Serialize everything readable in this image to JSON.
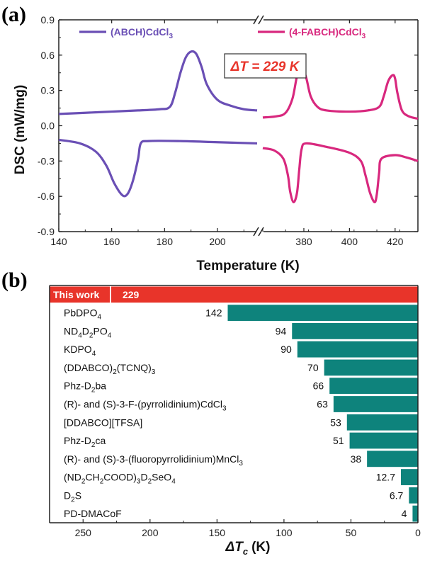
{
  "chart_data": [
    {
      "panel": "(a)",
      "type": "line",
      "ylabel": "DSC (mW/mg)",
      "xlabel": "Temperature (K)",
      "ylim": [
        -0.9,
        0.9
      ],
      "yticks": [
        "0.9",
        "0.6",
        "0.3",
        "0.0",
        "-0.3",
        "-0.6",
        "-0.9"
      ],
      "x_segments": [
        {
          "range": [
            140,
            215
          ],
          "ticks": [
            "140",
            "160",
            "180",
            "200"
          ]
        },
        {
          "range": [
            362,
            430
          ],
          "ticks": [
            "380",
            "400",
            "420"
          ]
        }
      ],
      "annotation": "ΔT = 229 K",
      "series": [
        {
          "name": "(ABCH)CdCl3",
          "name_main": "(ABCH)CdCl",
          "name_sub": "3",
          "color": "#6a4fb5",
          "segment": 0,
          "curves": [
            [
              [
                140,
                0.1
              ],
              [
                150,
                0.11
              ],
              [
                160,
                0.12
              ],
              [
                170,
                0.13
              ],
              [
                178,
                0.14
              ],
              [
                182,
                0.16
              ],
              [
                184,
                0.28
              ],
              [
                186,
                0.45
              ],
              [
                188,
                0.58
              ],
              [
                190,
                0.63
              ],
              [
                192,
                0.61
              ],
              [
                194,
                0.5
              ],
              [
                196,
                0.35
              ],
              [
                200,
                0.22
              ],
              [
                205,
                0.17
              ],
              [
                210,
                0.14
              ],
              [
                215,
                0.13
              ]
            ],
            [
              [
                140,
                -0.12
              ],
              [
                148,
                -0.15
              ],
              [
                154,
                -0.22
              ],
              [
                158,
                -0.34
              ],
              [
                161,
                -0.49
              ],
              [
                164,
                -0.59
              ],
              [
                166,
                -0.58
              ],
              [
                168,
                -0.47
              ],
              [
                170,
                -0.28
              ],
              [
                171,
                -0.15
              ],
              [
                174,
                -0.13
              ],
              [
                185,
                -0.13
              ],
              [
                200,
                -0.14
              ],
              [
                215,
                -0.15
              ]
            ]
          ]
        },
        {
          "name": "(4-FABCH)CdCl3",
          "name_main": "(4-FABCH)CdCl",
          "name_sub": "3",
          "color": "#d8287e",
          "segment": 1,
          "curves": [
            [
              [
                362,
                0.07
              ],
              [
                368,
                0.08
              ],
              [
                372,
                0.11
              ],
              [
                375,
                0.23
              ],
              [
                377,
                0.42
              ],
              [
                379,
                0.5
              ],
              [
                381,
                0.41
              ],
              [
                383,
                0.25
              ],
              [
                386,
                0.16
              ],
              [
                390,
                0.13
              ],
              [
                400,
                0.12
              ],
              [
                408,
                0.13
              ],
              [
                413,
                0.16
              ],
              [
                415,
                0.25
              ],
              [
                417,
                0.38
              ],
              [
                419,
                0.43
              ],
              [
                420,
                0.4
              ],
              [
                421,
                0.28
              ],
              [
                423,
                0.13
              ],
              [
                426,
                0.08
              ],
              [
                430,
                0.06
              ]
            ],
            [
              [
                362,
                -0.19
              ],
              [
                367,
                -0.21
              ],
              [
                371,
                -0.28
              ],
              [
                373,
                -0.42
              ],
              [
                374,
                -0.56
              ],
              [
                375.5,
                -0.65
              ],
              [
                377,
                -0.57
              ],
              [
                378,
                -0.37
              ],
              [
                379,
                -0.2
              ],
              [
                381,
                -0.15
              ],
              [
                390,
                -0.18
              ],
              [
                400,
                -0.23
              ],
              [
                405,
                -0.3
              ],
              [
                407,
                -0.42
              ],
              [
                409,
                -0.57
              ],
              [
                411,
                -0.65
              ],
              [
                412,
                -0.58
              ],
              [
                413,
                -0.4
              ],
              [
                414,
                -0.28
              ],
              [
                420,
                -0.25
              ],
              [
                425,
                -0.27
              ],
              [
                430,
                -0.3
              ]
            ]
          ]
        }
      ]
    },
    {
      "panel": "(b)",
      "type": "bar",
      "orientation": "horizontal",
      "xlabel_main": "ΔT",
      "xlabel_sub": "c",
      "xlabel_unit": "(K)",
      "xlim": [
        275,
        0
      ],
      "xticks": [
        "250",
        "200",
        "150",
        "100",
        "50",
        "0"
      ],
      "highlight_color": "#e8342a",
      "bar_color": "#0e837c",
      "bars": [
        {
          "label": "This work",
          "value": 229,
          "display": "229",
          "highlight": true
        },
        {
          "label": "PbDPO4",
          "parts": [
            [
              "PbDPO",
              ""
            ],
            [
              "4",
              "sub"
            ]
          ],
          "value": 142,
          "display": "142"
        },
        {
          "label": "ND4D2PO4",
          "parts": [
            [
              "ND",
              ""
            ],
            [
              "4",
              "sub"
            ],
            [
              "D",
              ""
            ],
            [
              "2",
              "sub"
            ],
            [
              "PO",
              ""
            ],
            [
              "4",
              "sub"
            ]
          ],
          "value": 94,
          "display": "94"
        },
        {
          "label": "KDPO4",
          "parts": [
            [
              "KDPO",
              ""
            ],
            [
              "4",
              "sub"
            ]
          ],
          "value": 90,
          "display": "90"
        },
        {
          "label": "(DDABCO)2(TCNQ)3",
          "parts": [
            [
              "(DDABCO)",
              ""
            ],
            [
              "2",
              "sub"
            ],
            [
              "(TCNQ)",
              ""
            ],
            [
              "3",
              "sub"
            ]
          ],
          "value": 70,
          "display": "70"
        },
        {
          "label": "Phz-D2ba",
          "parts": [
            [
              "Phz-D",
              ""
            ],
            [
              "2",
              "sub"
            ],
            [
              "ba",
              ""
            ]
          ],
          "value": 66,
          "display": "66"
        },
        {
          "label": "(R)- and (S)-3-F-(pyrrolidinium)CdCl3",
          "parts": [
            [
              "(R)- and (S)-3-F-(pyrrolidinium)CdCl",
              ""
            ],
            [
              "3",
              "sub"
            ]
          ],
          "value": 63,
          "display": "63"
        },
        {
          "label": "[DDABCO][TFSA]",
          "parts": [
            [
              "[DDABCO][TFSA]",
              ""
            ]
          ],
          "value": 53,
          "display": "53"
        },
        {
          "label": "Phz-D2ca",
          "parts": [
            [
              "Phz-D",
              ""
            ],
            [
              "2",
              "sub"
            ],
            [
              "ca",
              ""
            ]
          ],
          "value": 51,
          "display": "51"
        },
        {
          "label": "(R)- and (S)-3-(fluoropyrrolidinium)MnCl3",
          "parts": [
            [
              "(R)- and (S)-3-(fluoropyrrolidinium)MnCl",
              ""
            ],
            [
              "3",
              "sub"
            ]
          ],
          "value": 38,
          "display": "38"
        },
        {
          "label": "(ND2CH2COOD)3D2SeO4",
          "parts": [
            [
              "(ND",
              ""
            ],
            [
              "2",
              "sub"
            ],
            [
              "CH",
              ""
            ],
            [
              "2",
              "sub"
            ],
            [
              "COOD)",
              ""
            ],
            [
              "3",
              "sub"
            ],
            [
              "D",
              ""
            ],
            [
              "2",
              "sub"
            ],
            [
              "SeO",
              ""
            ],
            [
              "4",
              "sub"
            ]
          ],
          "value": 12.7,
          "display": "12.7"
        },
        {
          "label": "D2S",
          "parts": [
            [
              "D",
              ""
            ],
            [
              "2",
              "sub"
            ],
            [
              "S",
              ""
            ]
          ],
          "value": 6.7,
          "display": "6.7"
        },
        {
          "label": "PD-DMACoF",
          "parts": [
            [
              "PD-DMACoF",
              ""
            ]
          ],
          "value": 4,
          "display": "4"
        }
      ]
    }
  ]
}
